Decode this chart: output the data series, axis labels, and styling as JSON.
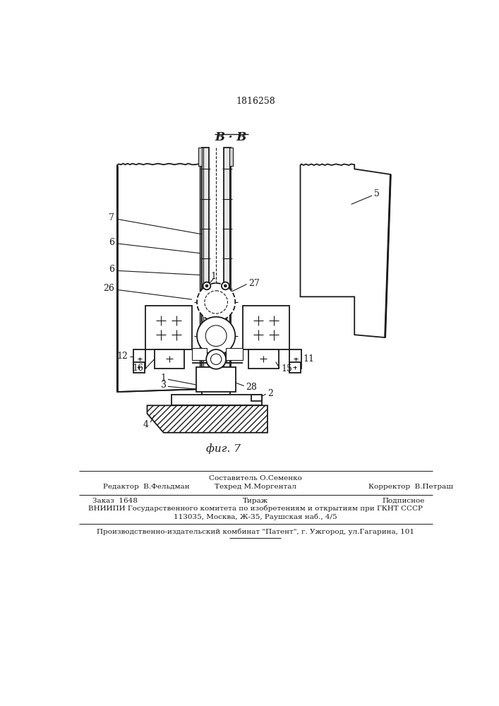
{
  "patent_number": "1816258",
  "section_label": "В · В",
  "fig_label": "фиг. 7",
  "line_color": "#1a1a1a",
  "editor_line": "Редактор  В.Фельдман",
  "composer_line": "Составитель О.Семенко",
  "techred_line": "Техред М.Моргентал",
  "corrector_line": "Корректор  В.Петраш",
  "order_line": "Заказ  1648",
  "tirazh_line": "Тираж",
  "podpisnoe_line": "Подписное",
  "vniiipi_line": "ВНИИПИ Государственного комитета по изобретениям и открытиям при ГКНТ СССР",
  "address_line": "113035, Москва, Ж-35, Раушская наб., 4/5",
  "factory_line": "Производственно-издательский комбинат \"Патент\", г. Ужгород, ул.Гагарина, 101"
}
